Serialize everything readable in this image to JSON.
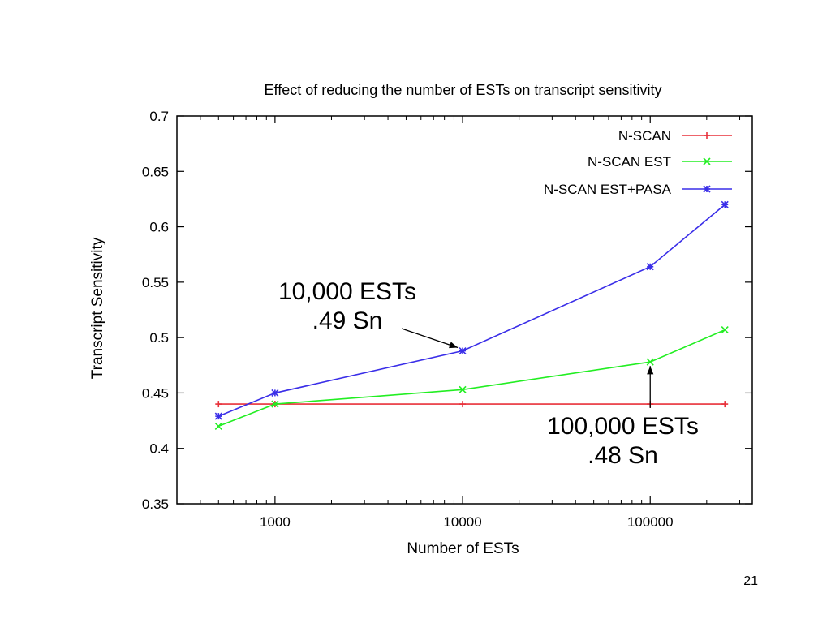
{
  "chart_data": {
    "type": "line",
    "title": "Effect of reducing the number of ESTs on transcript sensitivity",
    "xlabel": "Number of ESTs",
    "ylabel": "Transcript Sensitivity",
    "xscale": "log",
    "xlim": [
      300,
      350000
    ],
    "ylim": [
      0.35,
      0.7
    ],
    "xticks": [
      1000,
      10000,
      100000
    ],
    "xtick_labels": [
      "1000",
      "10000",
      "100000"
    ],
    "yticks": [
      0.35,
      0.4,
      0.45,
      0.5,
      0.55,
      0.6,
      0.65,
      0.7
    ],
    "ytick_labels": [
      "0.35",
      "0.4",
      "0.45",
      "0.5",
      "0.55",
      "0.6",
      "0.65",
      "0.7"
    ],
    "legend_position": "top-right",
    "grid": false,
    "series": [
      {
        "name": "N-SCAN",
        "color": "#e8303a",
        "marker": "plus",
        "x": [
          500,
          1000,
          10000,
          100000,
          250000
        ],
        "y": [
          0.44,
          0.44,
          0.44,
          0.44,
          0.44
        ]
      },
      {
        "name": "N-SCAN EST",
        "color": "#22ee22",
        "marker": "cross",
        "x": [
          500,
          1000,
          10000,
          100000,
          250000
        ],
        "y": [
          0.42,
          0.44,
          0.453,
          0.478,
          0.507
        ]
      },
      {
        "name": "N-SCAN EST+PASA",
        "color": "#3a2ee8",
        "marker": "star",
        "x": [
          500,
          1000,
          10000,
          100000,
          250000
        ],
        "y": [
          0.429,
          0.45,
          0.488,
          0.564,
          0.62
        ]
      }
    ],
    "annotations": [
      {
        "id": "ann1",
        "lines": [
          "10,000 ESTs",
          ".49 Sn"
        ],
        "points_to": {
          "x": 10000,
          "y": 0.488
        }
      },
      {
        "id": "ann2",
        "lines": [
          "100,000 ESTs",
          ".48 Sn"
        ],
        "points_to": {
          "x": 100000,
          "y": 0.478
        }
      }
    ]
  },
  "page_number": "21"
}
